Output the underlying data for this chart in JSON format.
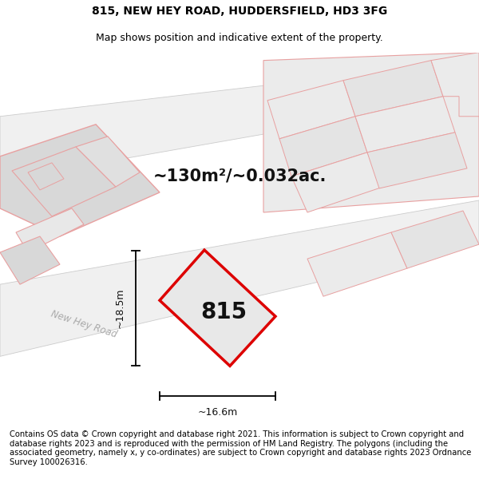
{
  "title_line1": "815, NEW HEY ROAD, HUDDERSFIELD, HD3 3FG",
  "title_line2": "Map shows position and indicative extent of the property.",
  "area_text": "~130m²/~0.032ac.",
  "plot_number": "815",
  "dim_width": "~16.6m",
  "dim_height": "~18.5m",
  "road_label": "New Hey Road",
  "footer_text": "Contains OS data © Crown copyright and database right 2021. This information is subject to Crown copyright and database rights 2023 and is reproduced with the permission of HM Land Registry. The polygons (including the associated geometry, namely x, y co-ordinates) are subject to Crown copyright and database rights 2023 Ordnance Survey 100026316.",
  "bg_color": "#ffffff",
  "map_bg_color": "#ffffff",
  "plot_fill": "#e8e8e8",
  "plot_edge_red": "#dd0000",
  "plot_edge_pink": "#e8a0a0",
  "bld_fill_dark": "#d8d8d8",
  "bld_fill_light": "#ebebeb",
  "road_fill": "#f5f5f5",
  "road_line": "#cccccc",
  "title_fontsize": 10,
  "subtitle_fontsize": 9,
  "footer_fontsize": 7.2
}
